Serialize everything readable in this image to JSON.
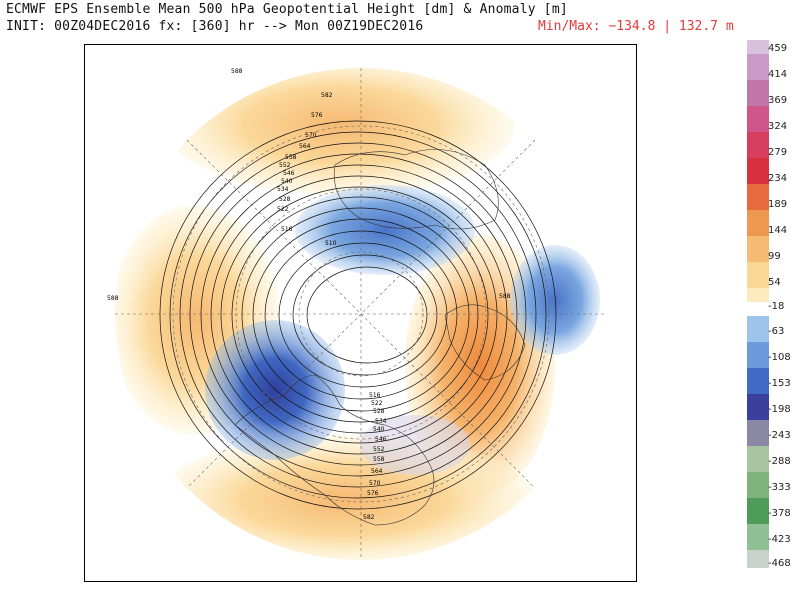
{
  "header": {
    "title": "ECMWF EPS Ensemble Mean 500 hPa Geopotential Height [dm] & Anomaly [m]",
    "init": "INIT: 00Z04DEC2016 fx: [360] hr --> Mon 00Z19DEC2016",
    "minmax": "Min/Max: −134.8 | 132.7 m"
  },
  "colorbar": {
    "labels": [
      "459",
      "414",
      "369",
      "324",
      "279",
      "234",
      "189",
      "144",
      "99",
      "54",
      "-18",
      "-63",
      "-108",
      "-153",
      "-198",
      "-243",
      "-288",
      "-333",
      "-378",
      "-423",
      "-468"
    ],
    "colors": {
      "positive_high": "#c79ac7",
      "positive_red": "#d82d3c",
      "positive_orange": "#f1a457",
      "positive_yellow": "#fde9b0",
      "negative_blue": "#6ca0df",
      "negative_dark": "#3b3fa8",
      "negative_green": "#4a9c56"
    }
  },
  "map": {
    "contour_labels": [
      "588",
      "582",
      "576",
      "570",
      "564",
      "558",
      "552",
      "546",
      "540",
      "534",
      "528",
      "522",
      "516",
      "510",
      "588",
      "588",
      "582",
      "576",
      "570",
      "564",
      "558",
      "552",
      "546",
      "540",
      "534",
      "528",
      "522",
      "516"
    ]
  }
}
